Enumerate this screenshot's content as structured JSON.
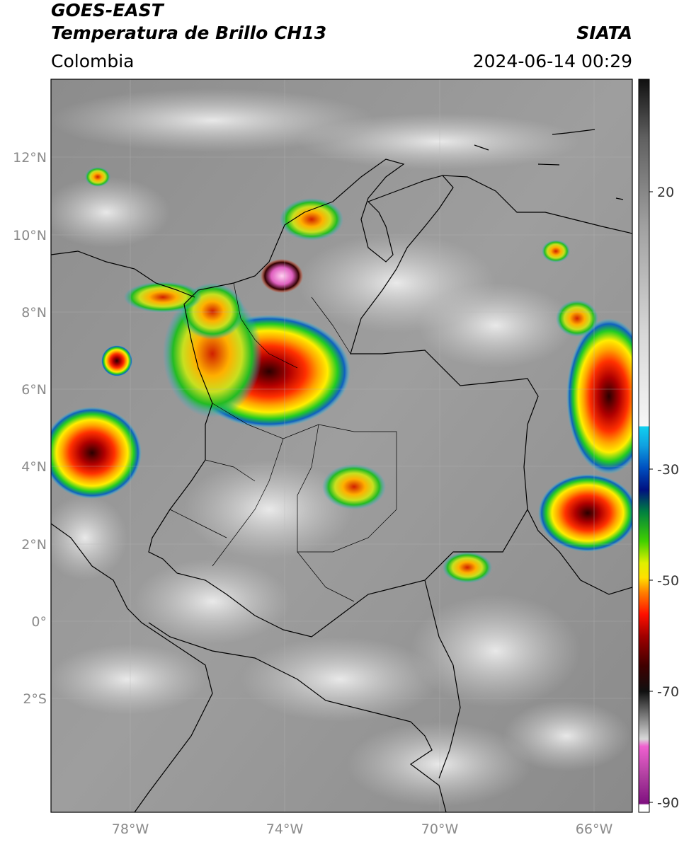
{
  "header": {
    "title_line1": "GOES-EAST",
    "title_line2": "Temperatura de Brillo CH13",
    "agency": "SIATA",
    "region": "Colombia",
    "timestamp": "2024-06-14 00:29"
  },
  "map": {
    "lat_labels": [
      "12°N",
      "10°N",
      "8°N",
      "6°N",
      "4°N",
      "2°N",
      "0°",
      "2°S"
    ],
    "lon_labels": [
      "78°W",
      "74°W",
      "70°W",
      "66°W"
    ]
  },
  "colorbar": {
    "tick_labels": [
      "20",
      "-30",
      "-50",
      "-70",
      "-90"
    ]
  },
  "colors": {
    "cold_core": "#3a0000",
    "red": "#e01000",
    "orange": "#ff8c00",
    "yellow": "#ffe600",
    "green": "#00cc00",
    "blue": "#0033aa",
    "cyan": "#00c8e6",
    "pink": "#e060c0"
  }
}
